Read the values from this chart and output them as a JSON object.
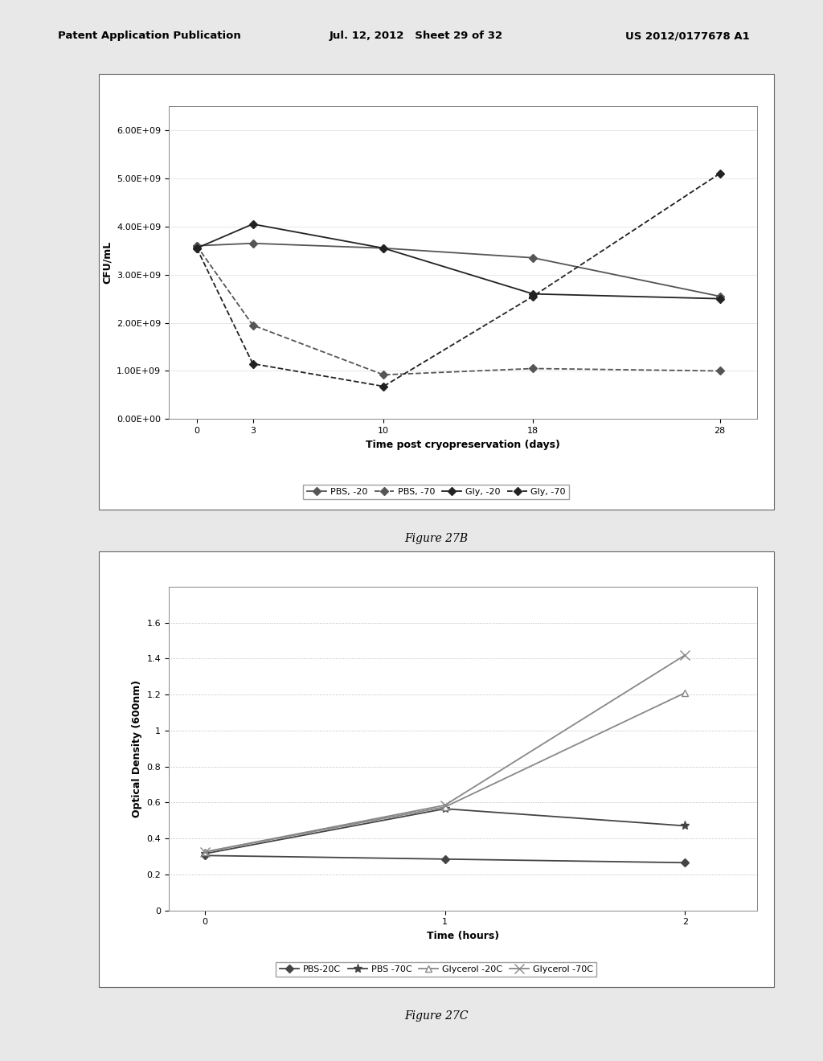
{
  "fig27b": {
    "xlabel": "Time post cryopreservation (days)",
    "ylabel": "CFU/mL",
    "xlim": [
      -1.5,
      30
    ],
    "ylim": [
      0,
      6500000000.0
    ],
    "xticks": [
      0,
      3,
      10,
      18,
      28
    ],
    "yticks": [
      0.0,
      1000000000.0,
      2000000000.0,
      3000000000.0,
      4000000000.0,
      5000000000.0,
      6000000000.0
    ],
    "ytick_labels": [
      "0.00E+00",
      "1.00E+09",
      "2.00E+09",
      "3.00E+09",
      "4.00E+09",
      "5.00E+09",
      "6.00E+09"
    ],
    "series": [
      {
        "label": "PBS, -20",
        "x": [
          0,
          3,
          10,
          18,
          28
        ],
        "y": [
          3600000000.0,
          3650000000.0,
          3550000000.0,
          3350000000.0,
          2550000000.0
        ],
        "color": "#555555",
        "linestyle": "solid",
        "marker": "D",
        "markersize": 5,
        "linewidth": 1.3
      },
      {
        "label": "PBS, -70",
        "x": [
          0,
          3,
          10,
          18,
          28
        ],
        "y": [
          3600000000.0,
          1950000000.0,
          920000000.0,
          1050000000.0,
          1000000000.0
        ],
        "color": "#555555",
        "linestyle": "dashed",
        "marker": "D",
        "markersize": 5,
        "linewidth": 1.3
      },
      {
        "label": "Gly, -20",
        "x": [
          0,
          3,
          10,
          18,
          28
        ],
        "y": [
          3550000000.0,
          4050000000.0,
          3550000000.0,
          2600000000.0,
          2500000000.0
        ],
        "color": "#222222",
        "linestyle": "solid",
        "marker": "D",
        "markersize": 5,
        "linewidth": 1.3
      },
      {
        "label": "Gly, -70",
        "x": [
          0,
          3,
          10,
          18,
          28
        ],
        "y": [
          3550000000.0,
          1150000000.0,
          680000000.0,
          2550000000.0,
          5100000000.0
        ],
        "color": "#222222",
        "linestyle": "dashed",
        "marker": "D",
        "markersize": 5,
        "linewidth": 1.3
      }
    ],
    "figure_label": "Figure 27B"
  },
  "fig27c": {
    "xlabel": "Time (hours)",
    "ylabel": "Optical Density (600nm)",
    "xlim": [
      -0.15,
      2.3
    ],
    "ylim": [
      0,
      1.8
    ],
    "xticks": [
      0,
      1,
      2
    ],
    "yticks": [
      0,
      0.2,
      0.4,
      0.6,
      0.8,
      1.0,
      1.2,
      1.4,
      1.6
    ],
    "ytick_labels": [
      "0",
      "0.2",
      "0.4",
      "0.6",
      "0.8",
      "1",
      "1.2",
      "1.4",
      "1.6"
    ],
    "series": [
      {
        "label": "PBS-20C",
        "x": [
          0,
          1,
          2
        ],
        "y": [
          0.305,
          0.285,
          0.265
        ],
        "color": "#444444",
        "linestyle": "solid",
        "marker": "D",
        "markersize": 5,
        "linewidth": 1.3,
        "markerfacecolor": "#444444"
      },
      {
        "label": "PBS -70C",
        "x": [
          0,
          1,
          2
        ],
        "y": [
          0.315,
          0.565,
          0.47
        ],
        "color": "#444444",
        "linestyle": "solid",
        "marker": "*",
        "markersize": 8,
        "linewidth": 1.3,
        "markerfacecolor": "#444444"
      },
      {
        "label": "Glycerol -20C",
        "x": [
          0,
          1,
          2
        ],
        "y": [
          0.325,
          0.575,
          1.21
        ],
        "color": "#888888",
        "linestyle": "solid",
        "marker": "^",
        "markersize": 6,
        "linewidth": 1.3,
        "markerfacecolor": "white"
      },
      {
        "label": "Glycerol -70C",
        "x": [
          0,
          1,
          2
        ],
        "y": [
          0.325,
          0.585,
          1.42
        ],
        "color": "#888888",
        "linestyle": "solid",
        "marker": "x",
        "markersize": 8,
        "linewidth": 1.3,
        "markerfacecolor": "#888888"
      }
    ],
    "figure_label": "Figure 27C"
  },
  "header_left": "Patent Application Publication",
  "header_center": "Jul. 12, 2012   Sheet 29 of 32",
  "header_right": "US 2012/0177678 A1",
  "bg_color": "#e8e8e8",
  "box_bg_color": "#ffffff"
}
